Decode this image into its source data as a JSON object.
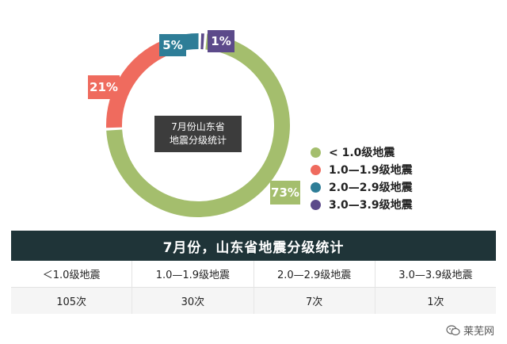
{
  "chart_data": {
    "type": "pie",
    "style": "donut",
    "categories": [
      "< 1.0级地震",
      "1.0—1.9级地震",
      "2.0—2.9级地震",
      "3.0—3.9级地震"
    ],
    "values": [
      73,
      21,
      5,
      1
    ],
    "value_labels": [
      "73%",
      "21%",
      "5%",
      "1%"
    ],
    "center_text": [
      "7月份山东省",
      "地震分级统计"
    ],
    "colors": [
      "#a4be6d",
      "#ef6b5e",
      "#2e7d97",
      "#5c4a8a"
    ],
    "legend": {
      "position": "right",
      "entries": [
        "< 1.0级地震",
        "1.0—1.9级地震",
        "2.0—2.9级地震",
        "3.0—3.9级地震"
      ]
    }
  },
  "table": {
    "title": "7月份，山东省地震分级统计",
    "headers": [
      "＜1.0级地震",
      "1.0—1.9级地震",
      "2.0—2.9级地震",
      "3.0—3.9级地震"
    ],
    "values": [
      "105次",
      "30次",
      "7次",
      "1次"
    ]
  },
  "watermark": {
    "text": "莱芜网",
    "icon": "wechat-icon"
  }
}
